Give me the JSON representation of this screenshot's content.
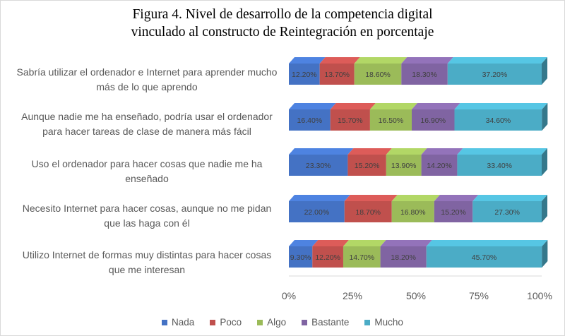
{
  "chart_data": {
    "type": "bar",
    "orientation": "horizontal",
    "stacked": true,
    "percent": true,
    "title": [
      "Figura 4. Nivel de desarrollo de la competencia digital",
      "vinculado al constructo de Reintegración en porcentaje"
    ],
    "categories": [
      "Sabría utilizar el ordenador e Internet para aprender mucho más de lo que aprendo",
      "Aunque nadie me ha enseñado, podría usar el ordenador para hacer tareas de clase de manera más fácil",
      "Uso el ordenador para hacer cosas que nadie me ha enseñado",
      "Necesito Internet para hacer cosas, aunque no me pidan que las haga con él",
      "Utilizo Internet de formas muy distintas para hacer cosas que me interesan"
    ],
    "category_lines": [
      [
        "Sabría utilizar el ordenador e Internet para aprender mucho",
        "más de lo que aprendo"
      ],
      [
        "Aunque nadie me ha enseñado, podría usar el ordenador",
        "para hacer tareas de clase de manera más fácil"
      ],
      [
        "Uso el ordenador para hacer cosas que nadie me ha",
        "enseñado"
      ],
      [
        "Necesito Internet para hacer cosas, aunque no me pidan",
        "que las haga con él"
      ],
      [
        "Utilizo Internet de formas muy distintas para hacer cosas",
        "que me interesan"
      ]
    ],
    "series": [
      {
        "name": "Nada",
        "color": "#4472c4",
        "values": [
          12.2,
          16.4,
          23.3,
          22.0,
          9.3
        ],
        "labels": [
          "12.20%",
          "16.40%",
          "23.30%",
          "22.00%",
          "9.30%"
        ]
      },
      {
        "name": "Poco",
        "color": "#c0504d",
        "values": [
          13.7,
          15.7,
          15.2,
          18.7,
          12.2
        ],
        "labels": [
          "13.70%",
          "15.70%",
          "15.20%",
          "18.70%",
          "12.20%"
        ]
      },
      {
        "name": "Algo",
        "color": "#9bbb59",
        "values": [
          18.6,
          16.5,
          13.9,
          16.8,
          14.7
        ],
        "labels": [
          "18.60%",
          "16.50%",
          "13.90%",
          "16.80%",
          "14.70%"
        ]
      },
      {
        "name": "Bastante",
        "color": "#8064a2",
        "values": [
          18.3,
          16.9,
          14.2,
          15.2,
          18.2
        ],
        "labels": [
          "18.30%",
          "16.90%",
          "14.20%",
          "15.20%",
          "18.20%"
        ]
      },
      {
        "name": "Mucho",
        "color": "#4bacc6",
        "values": [
          37.2,
          34.6,
          33.4,
          27.3,
          45.7
        ],
        "labels": [
          "37.20%",
          "34.60%",
          "33.40%",
          "27.30%",
          "45.70%"
        ]
      }
    ],
    "x_ticks": [
      "0%",
      "25%",
      "50%",
      "75%",
      "100%"
    ],
    "xlim": [
      0,
      100
    ],
    "legend_position": "bottom",
    "grid": false,
    "style": "3d"
  }
}
